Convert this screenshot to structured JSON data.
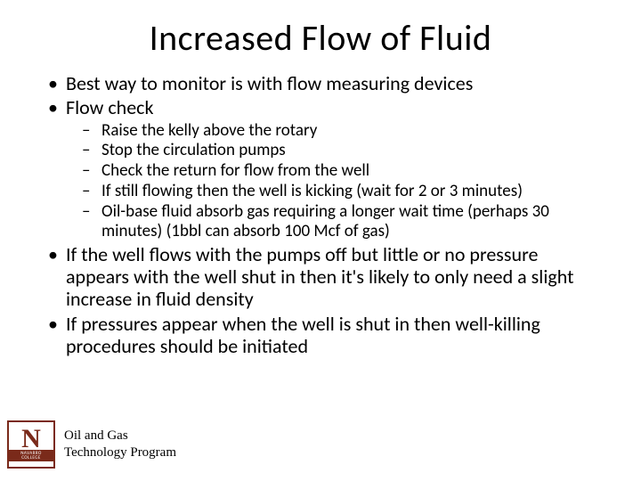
{
  "title": "Increased Flow of Fluid",
  "bullets": {
    "b1": "Best way to monitor is with flow measuring devices",
    "b2": "Flow check",
    "sub": {
      "s1": "Raise the kelly above the rotary",
      "s2": "Stop the circulation pumps",
      "s3": "Check the return for flow from the well",
      "s4": "If still flowing then the well is kicking (wait for 2 or 3 minutes)",
      "s5": "Oil-base fluid absorb gas requiring a longer wait time (perhaps 30 minutes) (1bbl can absorb 100 Mcf of gas)"
    },
    "b3": "If the well flows with the pumps off but little or no pressure appears with the well shut in then it's likely to only need a slight increase in fluid density",
    "b4": "If pressures appear when the well is shut in then well-killing procedures should be initiated"
  },
  "logo": {
    "letter": "N",
    "line1": "NAVARRO",
    "line2": "COLLEGE",
    "border_color": "#7a2a1a"
  },
  "footer": {
    "line1": "Oil and Gas",
    "line2": "Technology Program"
  },
  "colors": {
    "background": "#ffffff",
    "text": "#000000",
    "logo_accent": "#7a2a1a"
  },
  "typography": {
    "title_fontsize": 40,
    "bullet_fontsize": 22,
    "sub_fontsize": 19,
    "footer_fontsize": 15,
    "title_font": "Calibri",
    "footer_font": "Times New Roman"
  }
}
